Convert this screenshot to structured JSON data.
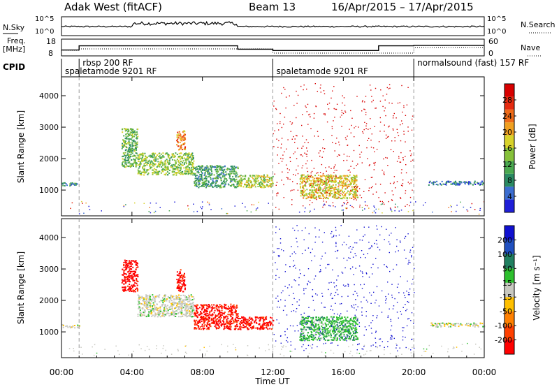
{
  "header": {
    "station": "Adak West (fitACF)",
    "beam": "Beam 13",
    "dates": "16/Apr/2015 – 17/Apr/2015"
  },
  "summary": {
    "nsky_label": "N.Sky",
    "nsearch_label": "N.Search",
    "freq_label_1": "Freq.",
    "freq_label_2": "[MHz]",
    "nave_label": "Nave",
    "cpid_label": "CPID",
    "nsky_ticks": [
      "10^5",
      "10^0"
    ],
    "nsearch_ticks": [
      "10^5",
      "10^0"
    ],
    "freq_ticks": [
      "18",
      "8"
    ],
    "nave_ticks": [
      "60",
      "0"
    ]
  },
  "cpid_segments": [
    {
      "label": "rbsp 200 RF",
      "start_hour": 1.0,
      "end_hour": 12.0,
      "row": 0
    },
    {
      "label": "spaletamode 9201 RF",
      "start_hour": 0.0,
      "end_hour": 12.0,
      "row": 1
    },
    {
      "label": "spaletamode 9201 RF",
      "start_hour": 12.0,
      "end_hour": 20.0,
      "row": 1
    },
    {
      "label": "normalsound (fast) 157 RF",
      "start_hour": 20.0,
      "end_hour": 24.0,
      "row": 0
    }
  ],
  "axes": {
    "x_label": "Time UT",
    "x_ticks": [
      "00:00",
      "04:00",
      "08:00",
      "12:00",
      "16:00",
      "20:00",
      "00:00"
    ],
    "x_range_hours": [
      0,
      24
    ],
    "y_label": "Slant Range [km]",
    "y_ticks": [
      1000,
      2000,
      3000,
      4000
    ],
    "y_range_km": [
      180,
      4600
    ],
    "dashed_boundaries_hours": [
      1.0,
      12.0,
      20.0
    ]
  },
  "chart_data": [
    {
      "type": "line",
      "panel": "summary-frequency-nave",
      "series": [
        {
          "name": "Freq.",
          "x": [
            0.0,
            1.0,
            1.0,
            10.0,
            10.0,
            12.0,
            12.0,
            18.0,
            18.0,
            20.0,
            20.0,
            24.0
          ],
          "y": [
            11.5,
            11.5,
            14.0,
            14.0,
            12.0,
            12.0,
            11.2,
            11.2,
            14.0,
            14.0,
            14.2,
            14.2
          ]
        },
        {
          "name": "Nave",
          "x": [
            0.0,
            1.0,
            1.0,
            12.0,
            12.0,
            20.0,
            20.0,
            24.0
          ],
          "y": [
            20,
            20,
            25,
            25,
            10,
            10,
            30,
            30
          ]
        }
      ]
    },
    {
      "type": "heatmap",
      "panel": "power",
      "colorbar_label": "Power [dB]",
      "colorbar_ticks": [
        4,
        8,
        12,
        16,
        20,
        24,
        28
      ],
      "colorbar_range": [
        0,
        32
      ],
      "colors": [
        "#1f1fd8",
        "#3b6dd0",
        "#2a8a63",
        "#4aa850",
        "#86c13a",
        "#d8d22a",
        "#f0a020",
        "#ee6a18",
        "#e62a10",
        "#d80000"
      ],
      "echo_regions": [
        {
          "t0": 0.0,
          "t1": 1.0,
          "r0": 1150,
          "r1": 1250,
          "value": 8
        },
        {
          "t0": 3.4,
          "t1": 4.3,
          "r0": 1750,
          "r1": 3000,
          "value": 12
        },
        {
          "t0": 4.3,
          "t1": 7.5,
          "r0": 1500,
          "r1": 2200,
          "value": 14
        },
        {
          "t0": 6.5,
          "t1": 7.0,
          "r0": 2300,
          "r1": 2900,
          "value": 22
        },
        {
          "t0": 7.5,
          "t1": 10.0,
          "r0": 1100,
          "r1": 1800,
          "value": 10
        },
        {
          "t0": 10.0,
          "t1": 12.0,
          "r0": 1100,
          "r1": 1500,
          "value": 16
        },
        {
          "t0": 13.5,
          "t1": 16.8,
          "r0": 750,
          "r1": 1500,
          "value": 18
        },
        {
          "t0": 20.8,
          "t1": 24.0,
          "r0": 1180,
          "r1": 1300,
          "value": 6
        }
      ]
    },
    {
      "type": "heatmap",
      "panel": "velocity",
      "colorbar_label": "Velocity [m s⁻¹]",
      "colorbar_ticks": [
        -200,
        -100,
        -50,
        -15,
        15,
        50,
        100,
        200
      ],
      "colorbar_range": [
        -250,
        250
      ],
      "colors": [
        "#ff0000",
        "#ff4000",
        "#ff8000",
        "#ffc000",
        "#c8c8c0",
        "#2ec02e",
        "#208060",
        "#2050c0",
        "#1010d0"
      ],
      "echo_regions": [
        {
          "t0": 0.0,
          "t1": 1.0,
          "r0": 1150,
          "r1": 1250,
          "value": 0
        },
        {
          "t0": 3.4,
          "t1": 4.3,
          "r0": 2300,
          "r1": 3300,
          "value": -230
        },
        {
          "t0": 4.3,
          "t1": 7.5,
          "r0": 1500,
          "r1": 2200,
          "value": 0
        },
        {
          "t0": 6.5,
          "t1": 7.0,
          "r0": 2300,
          "r1": 3000,
          "value": -220
        },
        {
          "t0": 7.5,
          "t1": 10.0,
          "r0": 1100,
          "r1": 1900,
          "value": -210
        },
        {
          "t0": 10.0,
          "t1": 12.0,
          "r0": 1100,
          "r1": 1500,
          "value": -220
        },
        {
          "t0": 13.5,
          "t1": 16.8,
          "r0": 750,
          "r1": 1500,
          "value": 60
        },
        {
          "t0": 20.8,
          "t1": 24.0,
          "r0": 1180,
          "r1": 1300,
          "value": 0
        }
      ]
    }
  ]
}
